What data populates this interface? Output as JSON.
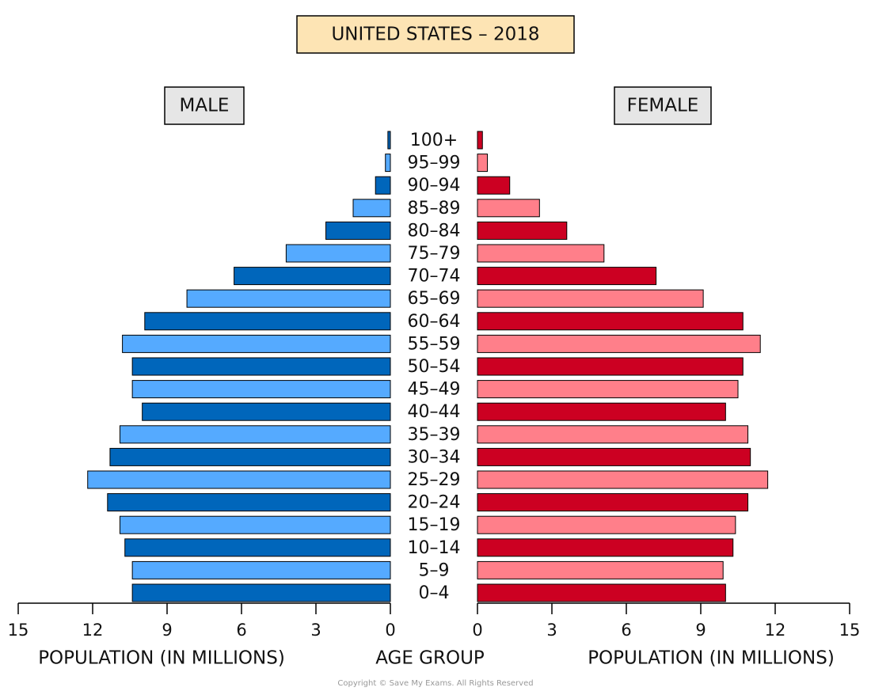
{
  "chart_data": {
    "type": "pyramid",
    "title": "UNITED STATES – 2018",
    "categories": [
      "0–4",
      "5–9",
      "10–14",
      "15–19",
      "20–24",
      "25–29",
      "30–34",
      "35–39",
      "40–44",
      "45–49",
      "50–54",
      "55–59",
      "60–64",
      "65–69",
      "70–74",
      "75–79",
      "80–84",
      "85–89",
      "90–94",
      "95–99",
      "100+"
    ],
    "series": [
      {
        "name": "MALE",
        "side": "left",
        "colors": [
          "#0066bb",
          "#55aaff"
        ],
        "values": [
          10.4,
          10.4,
          10.7,
          10.9,
          11.4,
          12.2,
          11.3,
          10.9,
          10.0,
          10.4,
          10.4,
          10.8,
          9.9,
          8.2,
          6.3,
          4.2,
          2.6,
          1.5,
          0.6,
          0.2,
          0.1
        ]
      },
      {
        "name": "FEMALE",
        "side": "right",
        "colors": [
          "#cc0022",
          "#ff7f8a"
        ],
        "values": [
          10.0,
          9.9,
          10.3,
          10.4,
          10.9,
          11.7,
          11.0,
          10.9,
          10.0,
          10.5,
          10.7,
          11.4,
          10.7,
          9.1,
          7.2,
          5.1,
          3.6,
          2.5,
          1.3,
          0.4,
          0.2
        ]
      }
    ],
    "xlim": [
      0,
      15
    ],
    "xticks": [
      0,
      3,
      6,
      9,
      12,
      15
    ],
    "x_label": "POPULATION (IN MILLIONS)",
    "category_label": "AGE GROUP",
    "footer": "Copyright © Save My Exams. All Rights Reserved"
  }
}
